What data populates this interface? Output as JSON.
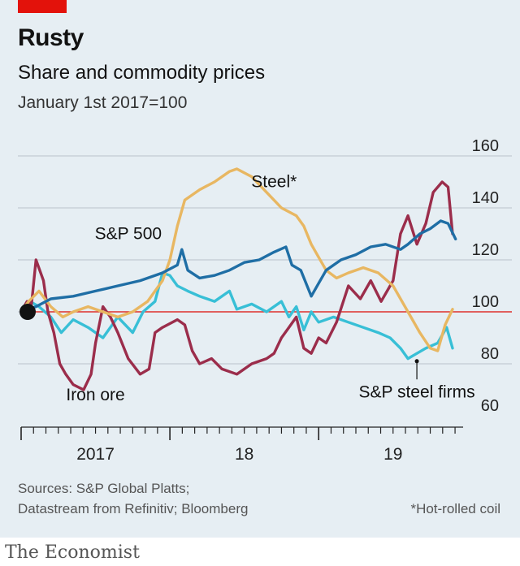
{
  "header": {
    "title": "Rusty",
    "subtitle": "Share and commodity prices",
    "index_note": "January 1st 2017=100"
  },
  "footer": {
    "sources_line1": "Sources: S&P Global Platts;",
    "sources_line2": "Datastream from Refinitiv; Bloomberg",
    "footnote": "*Hot-rolled coil",
    "brand": "The Economist"
  },
  "colors": {
    "sp500": "#1f6ea5",
    "steel": "#e8b762",
    "steel_firms": "#38bfd6",
    "iron_ore": "#9b2d4b",
    "baseline": "#e3120b",
    "brand_red": "#e3120b"
  },
  "chart_data": {
    "type": "line",
    "ylim": [
      60,
      160
    ],
    "yticks": [
      60,
      80,
      100,
      120,
      140,
      160
    ],
    "xlim": [
      2017.0,
      2019.96
    ],
    "xtick_labels": [
      {
        "label": "2017",
        "x": 2017.5
      },
      {
        "label": "18",
        "x": 2018.5
      },
      {
        "label": "19",
        "x": 2019.5
      }
    ],
    "grid": true,
    "baseline": 100,
    "series": [
      {
        "name": "S&P 500",
        "color_key": "sp500",
        "points": [
          [
            2017.0,
            100
          ],
          [
            2017.1,
            102
          ],
          [
            2017.2,
            105
          ],
          [
            2017.35,
            106
          ],
          [
            2017.5,
            108
          ],
          [
            2017.65,
            110
          ],
          [
            2017.8,
            112
          ],
          [
            2017.95,
            115
          ],
          [
            2018.05,
            118
          ],
          [
            2018.08,
            124
          ],
          [
            2018.12,
            116
          ],
          [
            2018.2,
            113
          ],
          [
            2018.3,
            114
          ],
          [
            2018.4,
            116
          ],
          [
            2018.5,
            119
          ],
          [
            2018.6,
            120
          ],
          [
            2018.7,
            123
          ],
          [
            2018.78,
            125
          ],
          [
            2018.82,
            118
          ],
          [
            2018.88,
            116
          ],
          [
            2018.95,
            106
          ],
          [
            2019.0,
            111
          ],
          [
            2019.05,
            116
          ],
          [
            2019.15,
            120
          ],
          [
            2019.25,
            122
          ],
          [
            2019.35,
            125
          ],
          [
            2019.45,
            126
          ],
          [
            2019.55,
            124
          ],
          [
            2019.6,
            126
          ],
          [
            2019.68,
            130
          ],
          [
            2019.75,
            132
          ],
          [
            2019.82,
            135
          ],
          [
            2019.87,
            134
          ],
          [
            2019.92,
            128
          ]
        ]
      },
      {
        "name": "Steel*",
        "color_key": "steel",
        "points": [
          [
            2017.0,
            100
          ],
          [
            2017.05,
            104
          ],
          [
            2017.12,
            108
          ],
          [
            2017.2,
            102
          ],
          [
            2017.28,
            98
          ],
          [
            2017.35,
            100
          ],
          [
            2017.45,
            102
          ],
          [
            2017.55,
            100
          ],
          [
            2017.65,
            98
          ],
          [
            2017.75,
            100
          ],
          [
            2017.85,
            104
          ],
          [
            2017.95,
            112
          ],
          [
            2018.0,
            120
          ],
          [
            2018.05,
            133
          ],
          [
            2018.1,
            143
          ],
          [
            2018.2,
            147
          ],
          [
            2018.3,
            150
          ],
          [
            2018.4,
            154
          ],
          [
            2018.45,
            155
          ],
          [
            2018.55,
            152
          ],
          [
            2018.65,
            146
          ],
          [
            2018.75,
            140
          ],
          [
            2018.85,
            137
          ],
          [
            2018.9,
            133
          ],
          [
            2018.95,
            126
          ],
          [
            2019.0,
            121
          ],
          [
            2019.05,
            116
          ],
          [
            2019.12,
            113
          ],
          [
            2019.2,
            115
          ],
          [
            2019.3,
            117
          ],
          [
            2019.4,
            115
          ],
          [
            2019.5,
            110
          ],
          [
            2019.6,
            100
          ],
          [
            2019.68,
            92
          ],
          [
            2019.75,
            86
          ],
          [
            2019.8,
            85
          ],
          [
            2019.85,
            95
          ],
          [
            2019.9,
            101
          ]
        ]
      },
      {
        "name": "S&P steel firms",
        "color_key": "steel_firms",
        "points": [
          [
            2017.0,
            100
          ],
          [
            2017.06,
            104
          ],
          [
            2017.12,
            102
          ],
          [
            2017.2,
            98
          ],
          [
            2017.27,
            92
          ],
          [
            2017.35,
            97
          ],
          [
            2017.45,
            94
          ],
          [
            2017.55,
            90
          ],
          [
            2017.65,
            98
          ],
          [
            2017.75,
            92
          ],
          [
            2017.82,
            100
          ],
          [
            2017.9,
            104
          ],
          [
            2017.95,
            115
          ],
          [
            2018.0,
            114
          ],
          [
            2018.05,
            110
          ],
          [
            2018.12,
            108
          ],
          [
            2018.2,
            106
          ],
          [
            2018.3,
            104
          ],
          [
            2018.4,
            108
          ],
          [
            2018.45,
            101
          ],
          [
            2018.55,
            103
          ],
          [
            2018.65,
            100
          ],
          [
            2018.75,
            104
          ],
          [
            2018.8,
            98
          ],
          [
            2018.85,
            102
          ],
          [
            2018.9,
            93
          ],
          [
            2018.95,
            100
          ],
          [
            2019.0,
            96
          ],
          [
            2019.1,
            98
          ],
          [
            2019.2,
            96
          ],
          [
            2019.3,
            94
          ],
          [
            2019.4,
            92
          ],
          [
            2019.48,
            90
          ],
          [
            2019.55,
            86
          ],
          [
            2019.6,
            82
          ],
          [
            2019.66,
            84
          ],
          [
            2019.72,
            86
          ],
          [
            2019.8,
            88
          ],
          [
            2019.86,
            94
          ],
          [
            2019.9,
            86
          ]
        ]
      },
      {
        "name": "Iron ore",
        "color_key": "iron_ore",
        "points": [
          [
            2017.0,
            100
          ],
          [
            2017.04,
            104
          ],
          [
            2017.07,
            103
          ],
          [
            2017.1,
            120
          ],
          [
            2017.15,
            112
          ],
          [
            2017.18,
            100
          ],
          [
            2017.22,
            92
          ],
          [
            2017.26,
            80
          ],
          [
            2017.3,
            76
          ],
          [
            2017.35,
            72
          ],
          [
            2017.42,
            70
          ],
          [
            2017.47,
            76
          ],
          [
            2017.5,
            88
          ],
          [
            2017.55,
            102
          ],
          [
            2017.6,
            98
          ],
          [
            2017.65,
            92
          ],
          [
            2017.72,
            82
          ],
          [
            2017.8,
            76
          ],
          [
            2017.86,
            78
          ],
          [
            2017.9,
            92
          ],
          [
            2017.95,
            94
          ],
          [
            2018.05,
            97
          ],
          [
            2018.1,
            95
          ],
          [
            2018.15,
            85
          ],
          [
            2018.2,
            80
          ],
          [
            2018.28,
            82
          ],
          [
            2018.35,
            78
          ],
          [
            2018.45,
            76
          ],
          [
            2018.55,
            80
          ],
          [
            2018.65,
            82
          ],
          [
            2018.7,
            84
          ],
          [
            2018.75,
            90
          ],
          [
            2018.8,
            94
          ],
          [
            2018.85,
            98
          ],
          [
            2018.9,
            86
          ],
          [
            2018.95,
            84
          ],
          [
            2019.0,
            90
          ],
          [
            2019.05,
            88
          ],
          [
            2019.12,
            96
          ],
          [
            2019.2,
            110
          ],
          [
            2019.28,
            105
          ],
          [
            2019.35,
            112
          ],
          [
            2019.42,
            104
          ],
          [
            2019.5,
            112
          ],
          [
            2019.55,
            130
          ],
          [
            2019.6,
            137
          ],
          [
            2019.66,
            126
          ],
          [
            2019.72,
            134
          ],
          [
            2019.77,
            146
          ],
          [
            2019.83,
            150
          ],
          [
            2019.87,
            148
          ],
          [
            2019.9,
            130
          ]
        ]
      }
    ],
    "labels": [
      {
        "text": "S&P 500",
        "x": 2017.72,
        "y": 128
      },
      {
        "text": "Steel*",
        "x": 2018.7,
        "y": 148
      },
      {
        "text": "Iron ore",
        "x": 2017.5,
        "y": 66
      },
      {
        "text": "S&P steel firms",
        "x": 2019.66,
        "y": 67
      }
    ]
  }
}
